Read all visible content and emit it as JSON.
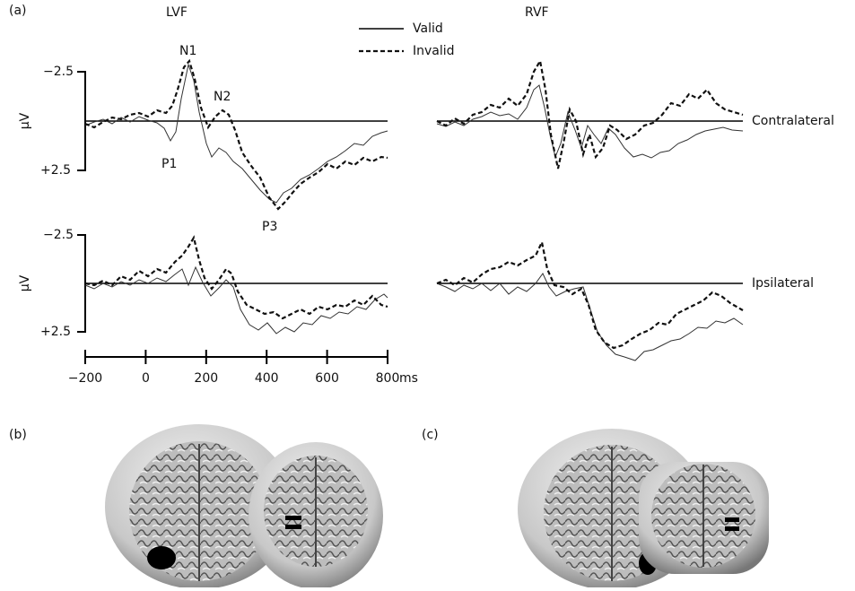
{
  "figure": {
    "panels": {
      "a": "(a)",
      "b": "(b)",
      "c": "(c)"
    },
    "fields": {
      "left": "LVF",
      "right": "RVF"
    },
    "legend": {
      "solid": "Valid",
      "dashed": "Invalid"
    },
    "rows": {
      "top": "Contralateral",
      "bottom": "Ipsilateral"
    },
    "y_axis": {
      "label": "µV",
      "top": "−2.5",
      "bottom": "+2.5"
    },
    "components": {
      "n1": "N1",
      "n2": "N2",
      "p1": "P1",
      "p3": "P3"
    },
    "x_axis": {
      "ticks": [
        "−200",
        "0",
        "200",
        "400",
        "600",
        "800"
      ],
      "unit": "ms"
    }
  }
}
